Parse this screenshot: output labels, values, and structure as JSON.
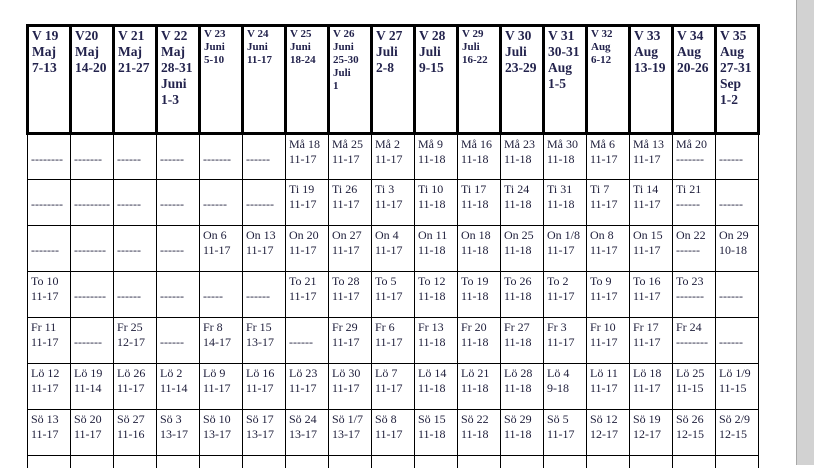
{
  "document": {
    "type": "weekly-opening-hours-schedule",
    "language": "sv",
    "colors": {
      "border": "#000000",
      "header_text": "#23234d",
      "cell_text": "#1d1d3a",
      "scroll_strip": "#d2d2d2"
    }
  },
  "table": {
    "columns": [
      {
        "id": "v19",
        "small": false,
        "header_lines": [
          "V 19",
          "Maj",
          "7-13"
        ]
      },
      {
        "id": "v20",
        "small": false,
        "header_lines": [
          "V20",
          "Maj",
          "14-20"
        ]
      },
      {
        "id": "v21",
        "small": false,
        "header_lines": [
          "V 21",
          "Maj",
          "21-27"
        ]
      },
      {
        "id": "v22",
        "small": false,
        "header_lines": [
          "V 22",
          "Maj",
          "28-31",
          "Juni",
          "1-3"
        ]
      },
      {
        "id": "v23",
        "small": true,
        "header_lines": [
          "V 23",
          "Juni",
          "5-10"
        ]
      },
      {
        "id": "v24",
        "small": true,
        "header_lines": [
          "V 24",
          "Juni",
          "11-17"
        ]
      },
      {
        "id": "v25",
        "small": true,
        "header_lines": [
          "V 25",
          "Juni",
          "18-24"
        ]
      },
      {
        "id": "v26",
        "small": true,
        "header_lines": [
          "V 26",
          "Juni",
          "25-30",
          "Juli",
          "1"
        ]
      },
      {
        "id": "v27",
        "small": false,
        "header_lines": [
          "V 27",
          "Juli",
          "2-8"
        ]
      },
      {
        "id": "v28",
        "small": false,
        "header_lines": [
          "V 28",
          "Juli",
          "9-15"
        ]
      },
      {
        "id": "v29",
        "small": true,
        "header_lines": [
          "V 29",
          "Juli",
          "16-22"
        ]
      },
      {
        "id": "v30",
        "small": false,
        "header_lines": [
          "V 30",
          "Juli",
          "23-29"
        ]
      },
      {
        "id": "v31",
        "small": false,
        "header_lines": [
          "V 31",
          "30-31",
          "Aug",
          "1-5"
        ]
      },
      {
        "id": "v32",
        "small": true,
        "header_lines": [
          "V 32",
          "Aug",
          "6-12"
        ]
      },
      {
        "id": "v33",
        "small": false,
        "header_lines": [
          "V 33",
          "Aug",
          "13-19"
        ]
      },
      {
        "id": "v34",
        "small": false,
        "header_lines": [
          "V 34",
          "Aug",
          "20-26"
        ]
      },
      {
        "id": "v35",
        "small": false,
        "header_lines": [
          "V 35",
          "Aug",
          "27-31",
          "Sep",
          "1-2"
        ]
      }
    ],
    "rows": [
      {
        "key": "ma",
        "day": "Måndag",
        "cells": [
          [
            "",
            "--------"
          ],
          [
            "",
            "-------"
          ],
          [
            "",
            "------"
          ],
          [
            "",
            "------"
          ],
          [
            "",
            "-------"
          ],
          [
            "",
            "------"
          ],
          [
            "Må 18",
            "11-17"
          ],
          [
            "Må 25",
            "11-17"
          ],
          [
            "Må 2",
            "11-17"
          ],
          [
            "Må 9",
            "11-18"
          ],
          [
            "Må 16",
            "11-18"
          ],
          [
            "Må 23",
            "11-18"
          ],
          [
            "Må 30",
            "11-18"
          ],
          [
            "Må 6",
            "11-17"
          ],
          [
            "Må 13",
            "11-17"
          ],
          [
            "Må 20",
            "-------"
          ],
          [
            "",
            "------"
          ]
        ]
      },
      {
        "key": "ti",
        "day": "Tisdag",
        "cells": [
          [
            "",
            "--------"
          ],
          [
            "",
            "---------"
          ],
          [
            "",
            "------"
          ],
          [
            "",
            "------"
          ],
          [
            "",
            "------"
          ],
          [
            "",
            "-------"
          ],
          [
            "Ti 19",
            "11-17"
          ],
          [
            "Ti 26",
            "11-17"
          ],
          [
            "Ti 3",
            "11-17"
          ],
          [
            "Ti 10",
            "11-18"
          ],
          [
            "Ti 17",
            "11-18"
          ],
          [
            "Ti 24",
            "11-18"
          ],
          [
            "Ti 31",
            "11-18"
          ],
          [
            "Ti 7",
            "11-17"
          ],
          [
            "Ti 14",
            "11-17"
          ],
          [
            "Ti 21",
            "------"
          ],
          [
            "",
            "------"
          ]
        ]
      },
      {
        "key": "on",
        "day": "Onsdag",
        "cells": [
          [
            "",
            "-------"
          ],
          [
            "",
            "--------"
          ],
          [
            "",
            "------"
          ],
          [
            "",
            "------"
          ],
          [
            "On 6",
            "11-17"
          ],
          [
            "On 13",
            "11-17"
          ],
          [
            "On 20",
            "11-17"
          ],
          [
            "On 27",
            "11-17"
          ],
          [
            "On 4",
            "11-17"
          ],
          [
            "On 11",
            "11-18"
          ],
          [
            "On 18",
            "11-18"
          ],
          [
            "On 25",
            "11-18"
          ],
          [
            "On 1/8",
            "11-17"
          ],
          [
            "On 8",
            "11-17"
          ],
          [
            "On 15",
            "11-17"
          ],
          [
            "On 22",
            "------"
          ],
          [
            "On 29",
            "10-18"
          ]
        ]
      },
      {
        "key": "to",
        "day": "Torsdag",
        "cells": [
          [
            "To 10",
            "11-17"
          ],
          [
            "",
            "--------"
          ],
          [
            "",
            "------"
          ],
          [
            "",
            "------"
          ],
          [
            "",
            "-----"
          ],
          [
            "",
            "------"
          ],
          [
            "To 21",
            "11-17"
          ],
          [
            "To 28",
            "11-17"
          ],
          [
            "To 5",
            "11-17"
          ],
          [
            "To 12",
            "11-18"
          ],
          [
            "To 19",
            "11-18"
          ],
          [
            "To 26",
            "11-18"
          ],
          [
            "To 2",
            "11-17"
          ],
          [
            "To 9",
            "11-17"
          ],
          [
            "To 16",
            "11-17"
          ],
          [
            "To 23",
            "-------"
          ],
          [
            "",
            "------"
          ]
        ]
      },
      {
        "key": "fr",
        "day": "Fredag",
        "cells": [
          [
            "Fr 11",
            "11-17"
          ],
          [
            "",
            "-------"
          ],
          [
            "Fr 25",
            "12-17"
          ],
          [
            "",
            "------"
          ],
          [
            "Fr 8",
            "14-17"
          ],
          [
            "Fr 15",
            "13-17"
          ],
          [
            "",
            "------"
          ],
          [
            "Fr 29",
            "11-17"
          ],
          [
            "Fr 6",
            "11-17"
          ],
          [
            "Fr 13",
            "11-18"
          ],
          [
            "Fr 20",
            "11-18"
          ],
          [
            "Fr 27",
            "11-18"
          ],
          [
            "Fr 3",
            "11-17"
          ],
          [
            "Fr 10",
            "11-17"
          ],
          [
            "Fr 17",
            "11-17"
          ],
          [
            "Fr 24",
            "--------"
          ],
          [
            "",
            "------"
          ]
        ]
      },
      {
        "key": "lo",
        "day": "Lördag",
        "cells": [
          [
            "Lö 12",
            "11-17"
          ],
          [
            "Lö 19",
            "11-14"
          ],
          [
            "Lö 26",
            "11-17"
          ],
          [
            "Lö 2",
            "11-14"
          ],
          [
            "Lö 9",
            "11-17"
          ],
          [
            "Lö 16",
            "11-17"
          ],
          [
            "Lö 23",
            "11-17"
          ],
          [
            "Lö 30",
            "11-17"
          ],
          [
            "Lö 7",
            "11-17"
          ],
          [
            "Lö 14",
            "11-18"
          ],
          [
            "Lö 21",
            "11-18"
          ],
          [
            "Lö 28",
            "11-18"
          ],
          [
            "Lö 4",
            "9-18"
          ],
          [
            "Lö 11",
            "11-17"
          ],
          [
            "Lö 18",
            "11-17"
          ],
          [
            "Lö 25",
            "11-15"
          ],
          [
            "Lö 1/9",
            "11-15"
          ]
        ]
      },
      {
        "key": "so",
        "day": "Söndag",
        "cells": [
          [
            "Sö 13",
            "11-17"
          ],
          [
            "Sö 20",
            "11-17"
          ],
          [
            "Sö 27",
            "11-16"
          ],
          [
            "Sö 3",
            "13-17"
          ],
          [
            "Sö 10",
            "13-17"
          ],
          [
            "Sö 17",
            "13-17"
          ],
          [
            "Sö 24",
            "13-17"
          ],
          [
            "Sö 1/7",
            "13-17"
          ],
          [
            "Sö 8",
            "11-17"
          ],
          [
            "Sö 15",
            "11-18"
          ],
          [
            "Sö 22",
            "11-18"
          ],
          [
            "Sö 29",
            "11-18"
          ],
          [
            "Sö 5",
            "11-17"
          ],
          [
            "Sö 12",
            "12-17"
          ],
          [
            "Sö 19",
            "12-17"
          ],
          [
            "Sö 26",
            "12-15"
          ],
          [
            "Sö 2/9",
            "12-15"
          ]
        ]
      }
    ]
  }
}
